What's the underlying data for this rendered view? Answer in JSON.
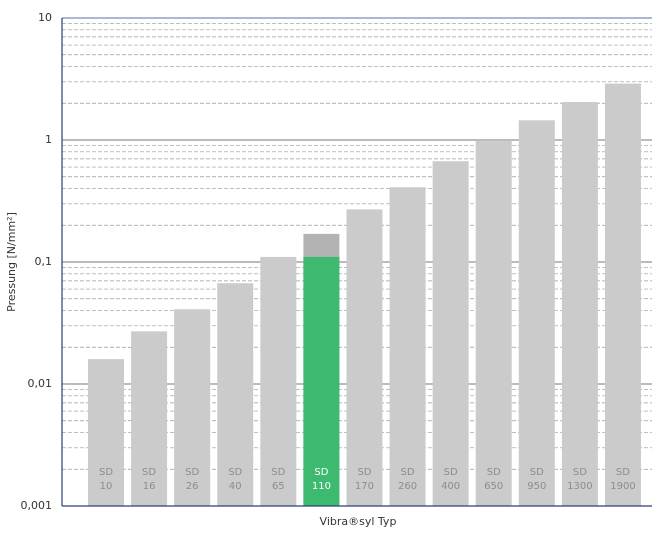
{
  "chart_data": {
    "type": "bar",
    "log_scale": true,
    "grid": true,
    "minor_grid": true,
    "y_label": "Pressung  [N/mm²]",
    "x_label": "Vibra®syl Typ",
    "categories": [
      [
        "SD",
        "10"
      ],
      [
        "SD",
        "16"
      ],
      [
        "SD",
        "26"
      ],
      [
        "SD",
        "40"
      ],
      [
        "SD",
        "65"
      ],
      [
        "SD",
        "110"
      ],
      [
        "SD",
        "170"
      ],
      [
        "SD",
        "260"
      ],
      [
        "SD",
        "400"
      ],
      [
        "SD",
        "650"
      ],
      [
        "SD",
        "950"
      ],
      [
        "SD",
        "1300"
      ],
      [
        "SD",
        "1900"
      ]
    ],
    "values": [
      0.016,
      0.027,
      0.041,
      0.067,
      0.11,
      0.17,
      0.27,
      0.41,
      0.67,
      0.98,
      1.45,
      2.05,
      2.9
    ],
    "highlight_values": [
      null,
      null,
      null,
      null,
      null,
      0.11,
      null,
      null,
      null,
      null,
      null,
      null,
      null
    ],
    "color": "#cbcbcb",
    "highlight_color": "#3dba6f",
    "highlight_bar_color": "#b3b3b3",
    "ylim": [
      0.001,
      10
    ],
    "yticks": [
      {
        "value": 0.001,
        "label": "0,001"
      },
      {
        "value": 0.01,
        "label": "0,01"
      },
      {
        "value": 0.1,
        "label": "0,1"
      },
      1,
      10
    ]
  }
}
